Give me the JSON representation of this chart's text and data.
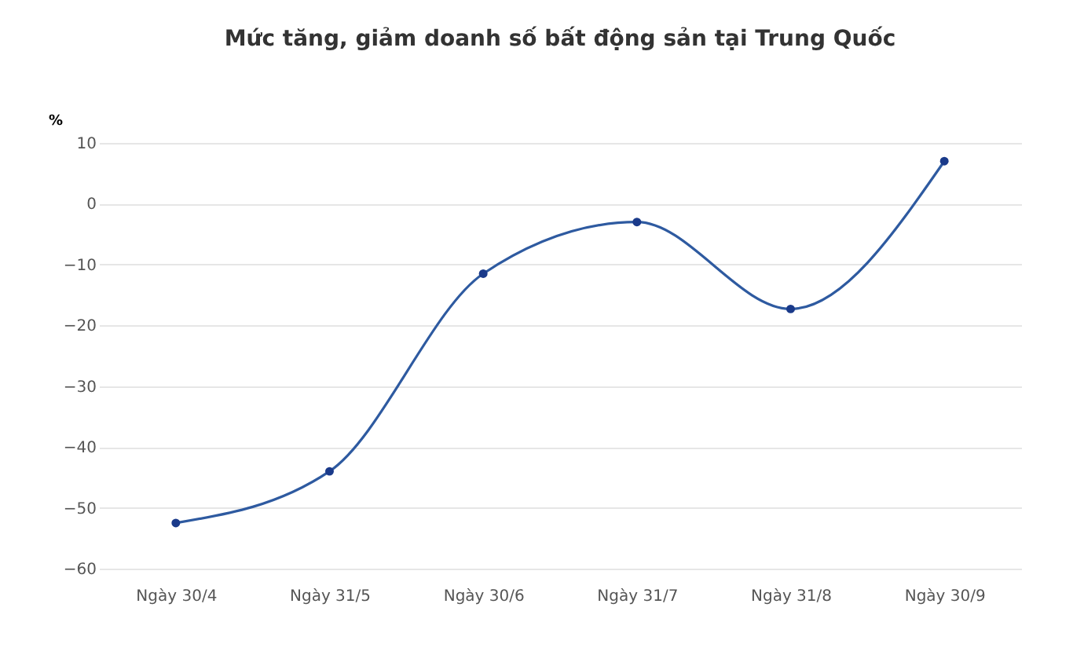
{
  "chart_data": {
    "type": "line",
    "title": "Mức tăng, giảm doanh số bất động sản tại Trung Quốc",
    "ylabel": "%",
    "categories": [
      "Ngày 30/4",
      "Ngày 31/5",
      "Ngày 30/6",
      "Ngày 31/7",
      "Ngày 31/8",
      "Ngày 30/9"
    ],
    "series": [
      {
        "color": "#2e5aa0",
        "values": [
          -52.5,
          -44,
          -11.5,
          -3,
          -17.3,
          7
        ]
      }
    ],
    "ylim": [
      -60,
      10
    ],
    "yticks": [
      -60,
      -50,
      -40,
      -30,
      -20,
      -10,
      0,
      10
    ],
    "grid": "y",
    "marker": "circle",
    "line_style": "solid"
  }
}
